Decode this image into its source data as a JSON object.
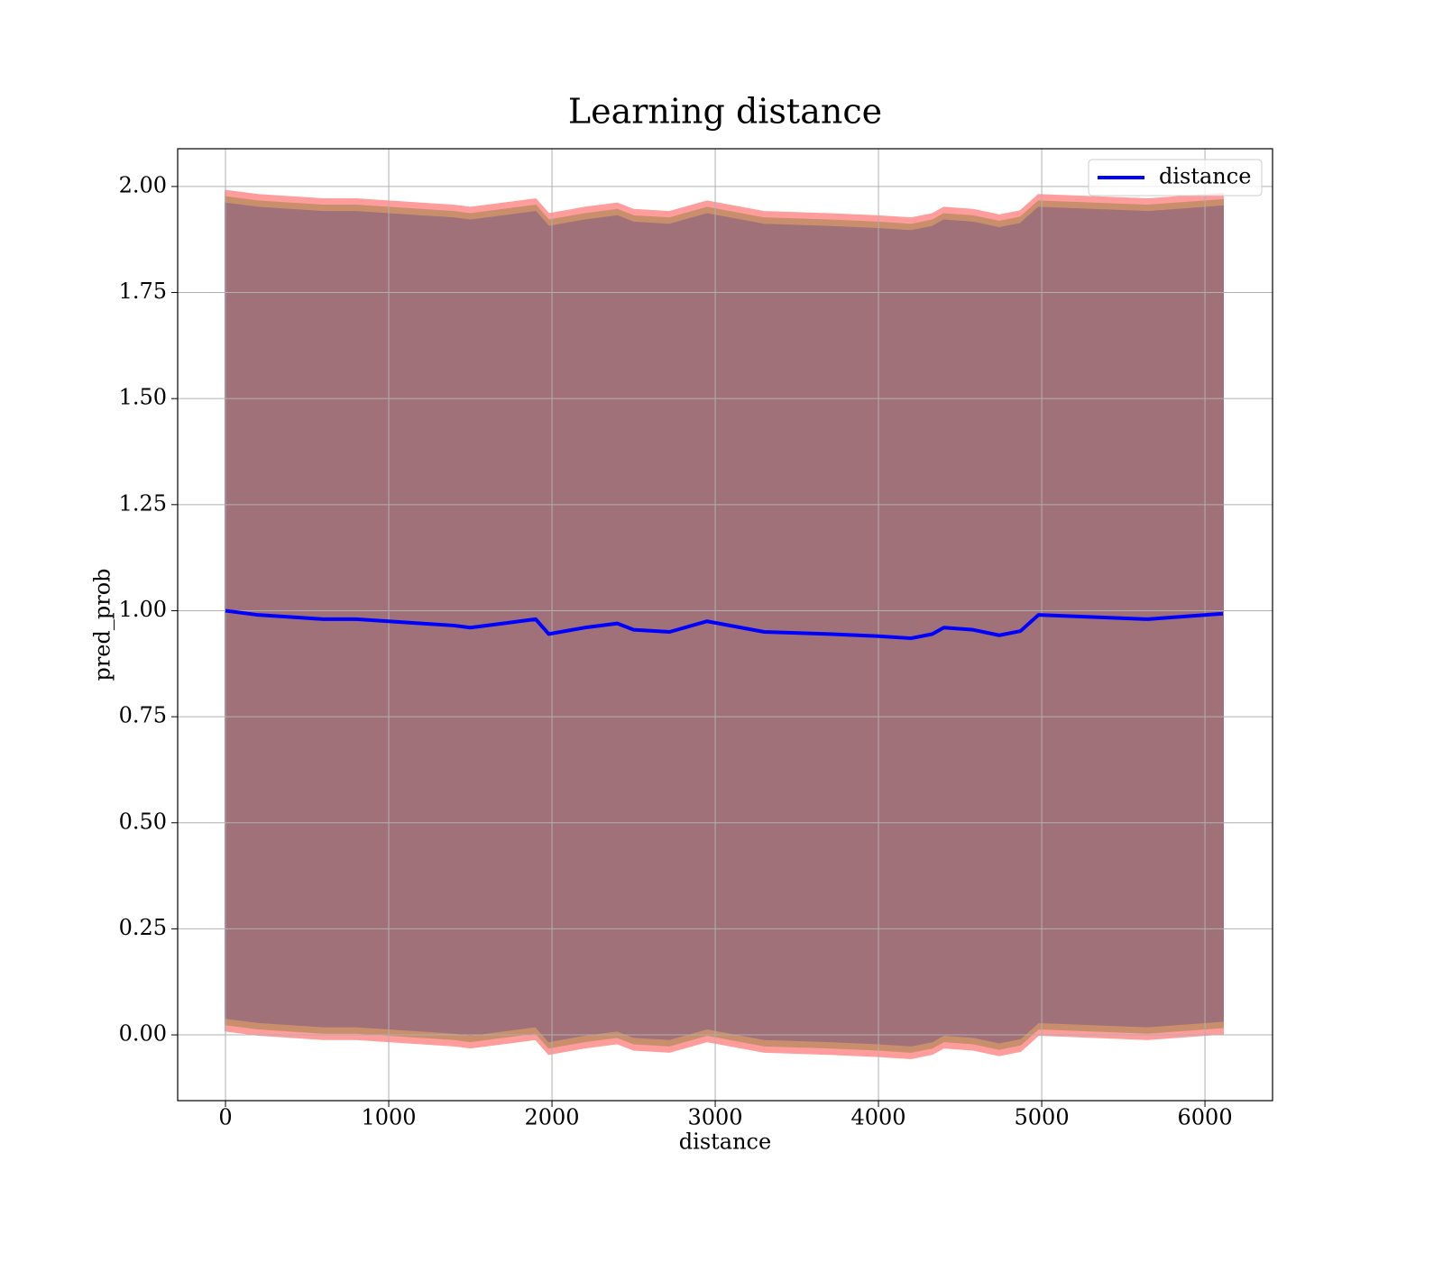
{
  "chart_data": {
    "type": "line",
    "title": "Learning distance",
    "xlabel": "distance",
    "ylabel": "pred_prob",
    "x": [
      0,
      200,
      400,
      600,
      800,
      1000,
      1200,
      1400,
      1500,
      1700,
      1900,
      1980,
      2200,
      2400,
      2500,
      2720,
      2950,
      3300,
      3700,
      4000,
      4200,
      4330,
      4400,
      4580,
      4740,
      4870,
      4980,
      5650,
      6110
    ],
    "series": [
      {
        "name": "distance",
        "color": "#0000ff",
        "values": [
          1.0,
          0.99,
          0.985,
          0.98,
          0.98,
          0.975,
          0.97,
          0.965,
          0.96,
          0.97,
          0.98,
          0.945,
          0.96,
          0.97,
          0.955,
          0.95,
          0.975,
          0.95,
          0.945,
          0.94,
          0.935,
          0.945,
          0.96,
          0.955,
          0.942,
          0.952,
          0.99,
          0.98,
          0.993
        ]
      }
    ],
    "bands": [
      {
        "color": "#ff9c9c",
        "upper": [
          1.99,
          1.98,
          1.975,
          1.97,
          1.97,
          1.965,
          1.96,
          1.955,
          1.95,
          1.96,
          1.97,
          1.935,
          1.95,
          1.96,
          1.945,
          1.94,
          1.965,
          1.94,
          1.935,
          1.93,
          1.925,
          1.935,
          1.95,
          1.945,
          1.932,
          1.942,
          1.98,
          1.97,
          1.983
        ],
        "lower": [
          0.01,
          0.0,
          -0.005,
          -0.01,
          -0.01,
          -0.015,
          -0.02,
          -0.025,
          -0.03,
          -0.02,
          -0.01,
          -0.045,
          -0.03,
          -0.02,
          -0.035,
          -0.04,
          -0.015,
          -0.04,
          -0.045,
          -0.05,
          -0.055,
          -0.045,
          -0.03,
          -0.035,
          -0.048,
          -0.038,
          0.0,
          -0.01,
          0.003
        ]
      },
      {
        "color": "#c98f6c",
        "upper": [
          1.975,
          1.965,
          1.96,
          1.955,
          1.955,
          1.95,
          1.945,
          1.94,
          1.935,
          1.945,
          1.955,
          1.92,
          1.935,
          1.945,
          1.93,
          1.925,
          1.95,
          1.925,
          1.92,
          1.915,
          1.91,
          1.92,
          1.935,
          1.93,
          1.917,
          1.927,
          1.965,
          1.955,
          1.968
        ],
        "lower": [
          0.025,
          0.015,
          0.01,
          0.005,
          0.005,
          0.0,
          -0.005,
          -0.01,
          -0.015,
          -0.005,
          0.005,
          -0.03,
          -0.015,
          -0.005,
          -0.02,
          -0.025,
          0.0,
          -0.025,
          -0.03,
          -0.035,
          -0.04,
          -0.03,
          -0.015,
          -0.02,
          -0.033,
          -0.023,
          0.015,
          0.005,
          0.018
        ]
      },
      {
        "color": "#a1717a",
        "upper": [
          1.96,
          1.95,
          1.945,
          1.94,
          1.94,
          1.935,
          1.93,
          1.925,
          1.92,
          1.93,
          1.94,
          1.905,
          1.92,
          1.93,
          1.915,
          1.91,
          1.935,
          1.91,
          1.905,
          1.9,
          1.895,
          1.905,
          1.92,
          1.915,
          1.902,
          1.912,
          1.95,
          1.94,
          1.953
        ],
        "lower": [
          0.04,
          0.03,
          0.025,
          0.02,
          0.02,
          0.015,
          0.01,
          0.005,
          0.0,
          0.01,
          0.02,
          -0.015,
          0.0,
          0.01,
          -0.005,
          -0.01,
          0.015,
          -0.01,
          -0.015,
          -0.02,
          -0.025,
          -0.015,
          0.0,
          -0.005,
          -0.018,
          -0.008,
          0.03,
          0.02,
          0.033
        ]
      }
    ],
    "xlim": [
      -293,
      6414
    ],
    "ylim": [
      -0.155,
      2.089
    ],
    "xticks": [
      0,
      1000,
      2000,
      3000,
      4000,
      5000,
      6000
    ],
    "yticks": [
      {
        "value": 0,
        "label": "0.00"
      },
      {
        "value": 0.25,
        "label": "0.25"
      },
      {
        "value": 0.5,
        "label": "0.50"
      },
      {
        "value": 0.75,
        "label": "0.75"
      },
      {
        "value": 1,
        "label": "1.00"
      },
      {
        "value": 1.25,
        "label": "1.25"
      },
      {
        "value": 1.5,
        "label": "1.50"
      },
      {
        "value": 1.75,
        "label": "1.75"
      },
      {
        "value": 2,
        "label": "2.00"
      }
    ],
    "grid": true,
    "legend": "upper right"
  }
}
